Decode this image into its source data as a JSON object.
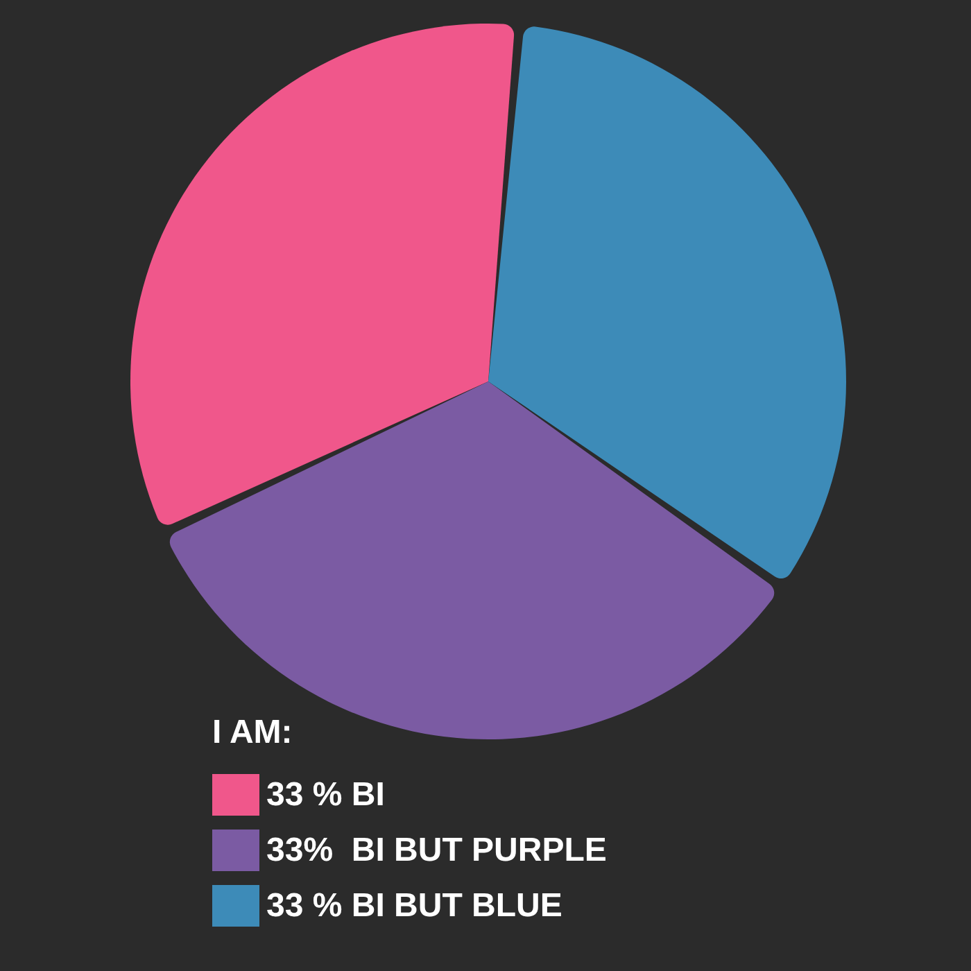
{
  "chart_data": {
    "type": "pie",
    "legend_title": "I AM:",
    "categories": [
      "33 % BI",
      "33%  BI BUT PURPLE",
      "33 % BI BUT BLUE"
    ],
    "values": [
      33,
      33,
      33
    ],
    "colors": [
      "#f0578b",
      "#7b5ba3",
      "#3d8bb8"
    ],
    "legend": "bottom left"
  }
}
